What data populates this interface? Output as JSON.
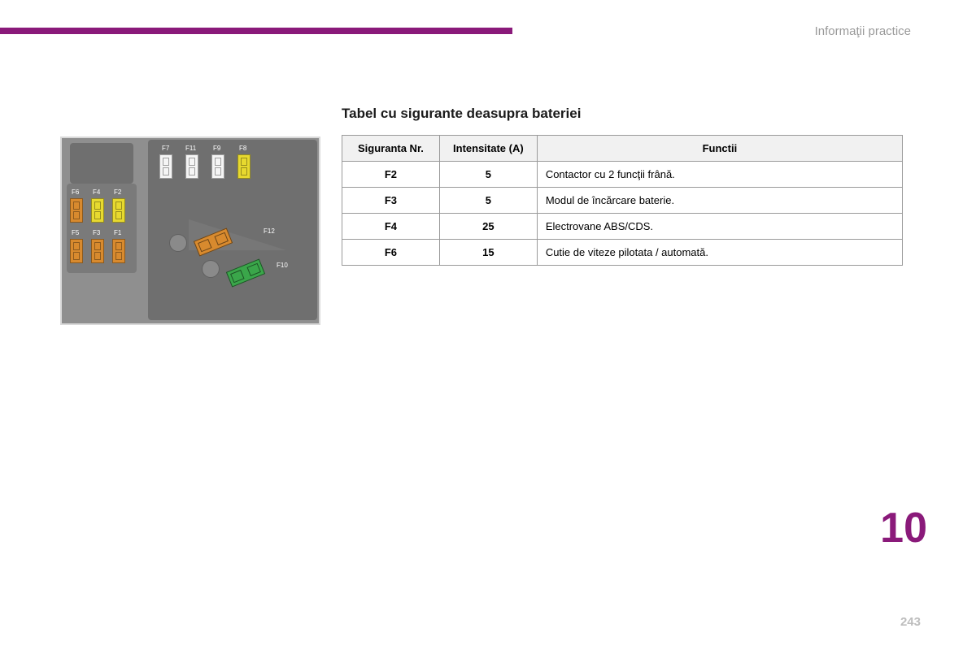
{
  "colors": {
    "accent": "#8a1a7a",
    "header_text": "#9a9a9a",
    "title_text": "#1a1a1a",
    "diagram_bg": "#8f8f8f",
    "panel_dark": "#6f6f6f",
    "panel_mid": "#7a7a7a",
    "fuse_white": "#f5f5f5",
    "fuse_yellow": "#e7d92f",
    "fuse_orange": "#d88a2e",
    "fuse_green": "#3aa64a",
    "circle": "#8a8a8a",
    "table_header_bg": "#f1f1f1",
    "page_num": "#bdbdbd"
  },
  "layout": {
    "top_bar_width": 630,
    "table_col_widths": [
      120,
      120,
      450
    ]
  },
  "header": "Informaţii practice",
  "title": "Tabel cu sigurante deasupra bateriei",
  "table": {
    "columns": [
      "Siguranta Nr.",
      "Intensitate (A)",
      "Functii"
    ],
    "rows": [
      [
        "F2",
        "5",
        "Contactor cu 2 funcţii frână."
      ],
      [
        "F3",
        "5",
        "Modul de încărcare baterie."
      ],
      [
        "F4",
        "25",
        "Electrovane ABS/CDS."
      ],
      [
        "F6",
        "15",
        "Cutie de viteze pilotata / automată."
      ]
    ]
  },
  "diagram": {
    "labels_top": [
      "F7",
      "F11",
      "F9",
      "F8"
    ],
    "labels_left_top": [
      "F6",
      "F4",
      "F2"
    ],
    "labels_left_bottom": [
      "F5",
      "F3",
      "F1"
    ],
    "label_f12": "F12",
    "label_f10": "F10"
  },
  "chapter": "10",
  "page": "243"
}
